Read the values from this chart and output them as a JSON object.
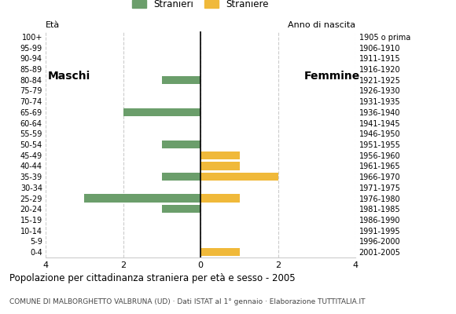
{
  "age_groups": [
    "0-4",
    "5-9",
    "10-14",
    "15-19",
    "20-24",
    "25-29",
    "30-34",
    "35-39",
    "40-44",
    "45-49",
    "50-54",
    "55-59",
    "60-64",
    "65-69",
    "70-74",
    "75-79",
    "80-84",
    "85-89",
    "90-94",
    "95-99",
    "100+"
  ],
  "birth_years": [
    "2001-2005",
    "1996-2000",
    "1991-1995",
    "1986-1990",
    "1981-1985",
    "1976-1980",
    "1971-1975",
    "1966-1970",
    "1961-1965",
    "1956-1960",
    "1951-1955",
    "1946-1950",
    "1941-1945",
    "1936-1940",
    "1931-1935",
    "1926-1930",
    "1921-1925",
    "1916-1920",
    "1911-1915",
    "1906-1910",
    "1905 o prima"
  ],
  "males": [
    0,
    0,
    0,
    0,
    1,
    3,
    0,
    1,
    0,
    0,
    1,
    0,
    0,
    2,
    0,
    0,
    1,
    0,
    0,
    0,
    0
  ],
  "females": [
    1,
    0,
    0,
    0,
    0,
    1,
    0,
    2,
    1,
    1,
    0,
    0,
    0,
    0,
    0,
    0,
    0,
    0,
    0,
    0,
    0
  ],
  "male_color": "#6b9e6b",
  "female_color": "#f0b93a",
  "male_label": "Stranieri",
  "female_label": "Straniere",
  "xlim": 4,
  "title": "Popolazione per cittadinanza straniera per età e sesso - 2005",
  "subtitle": "COMUNE DI MALBORGHETTO VALBRUNA (UD) · Dati ISTAT al 1° gennaio · Elaborazione TUTTITALIA.IT",
  "xlabel_left": "Maschi",
  "xlabel_right": "Femmine",
  "eta_label": "Età",
  "anno_label": "Anno di nascita",
  "background_color": "#ffffff",
  "grid_color": "#cccccc",
  "bar_height": 0.75
}
